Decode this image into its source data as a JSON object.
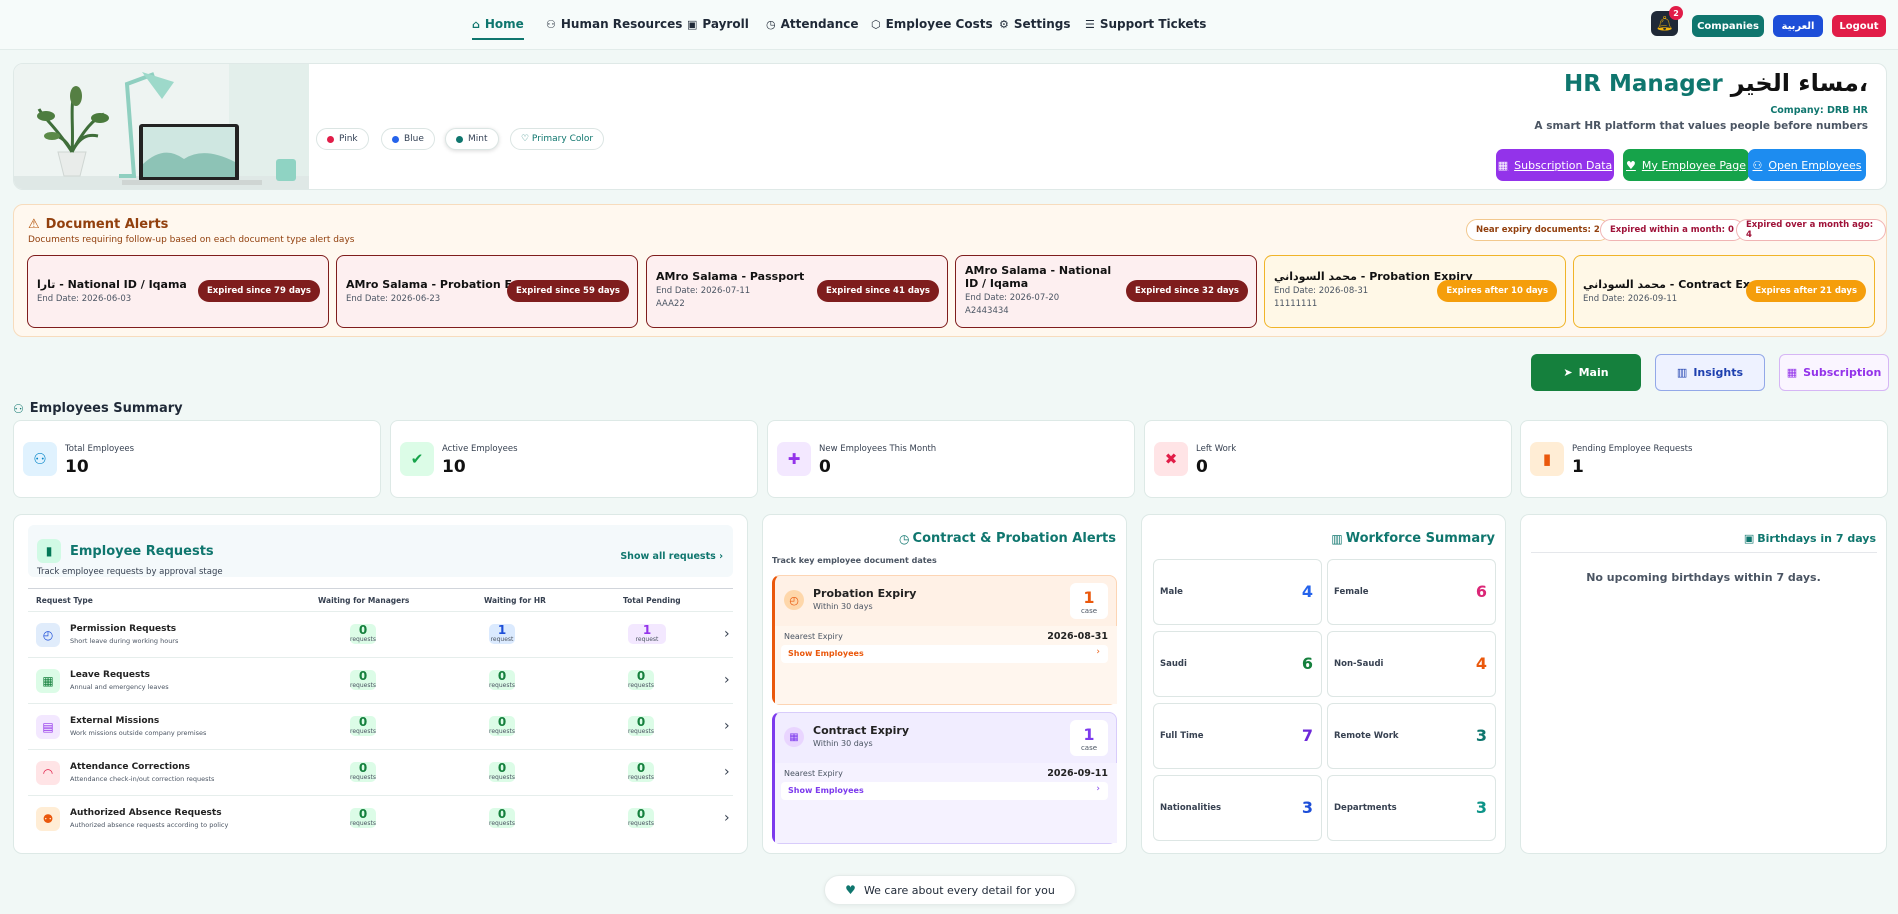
{
  "nav": {
    "items": [
      {
        "label": "Home",
        "icon": "home-icon"
      },
      {
        "label": "Human Resources",
        "icon": "people-icon"
      },
      {
        "label": "Payroll",
        "icon": "wallet-icon"
      },
      {
        "label": "Attendance",
        "icon": "clock-icon"
      },
      {
        "label": "Employee Costs",
        "icon": "cube-icon"
      },
      {
        "label": "Settings",
        "icon": "gear-icon"
      },
      {
        "label": "Support Tickets",
        "icon": "ticket-icon"
      }
    ],
    "notification_count": "2",
    "companies": "Companies",
    "arabic": "العربية",
    "logout": "Logout"
  },
  "hero": {
    "greeting": "مساء الخير،",
    "role": "HR Manager",
    "company": "Company: DRB HR",
    "tagline": "A smart HR platform that values people before numbers",
    "themes": [
      {
        "label": "Pink",
        "color": "#e11d48"
      },
      {
        "label": "Blue",
        "color": "#2563eb"
      },
      {
        "label": "Mint",
        "color": "#0f766e"
      }
    ],
    "primary_color": "♡ Primary Color",
    "buttons": {
      "subscription": "Subscription Data",
      "my_page": "My Employee Page",
      "open_employees": "Open Employees"
    }
  },
  "alerts": {
    "title": "Document Alerts",
    "subtitle": "Documents requiring follow-up based on each document type alert days",
    "summary": [
      "Near expiry documents: 2",
      "Expired within a month: 0",
      "Expired over a month ago: 4"
    ],
    "cards": [
      {
        "title": "تارا - National ID / Iqama",
        "end": "End Date: 2026-06-03",
        "extra": "",
        "badge": "Expired since 79 days",
        "status": "expired"
      },
      {
        "title": "AMro Salama - Probation Expiry",
        "end": "End Date: 2026-06-23",
        "extra": "",
        "badge": "Expired since 59 days",
        "status": "expired"
      },
      {
        "title": "AMro Salama - Passport",
        "end": "End Date: 2026-07-11",
        "extra": "AAA22",
        "badge": "Expired since 41 days",
        "status": "expired"
      },
      {
        "title": "AMro Salama - National ID / Iqama",
        "end": "End Date: 2026-07-20",
        "extra": "A2443434",
        "badge": "Expired since 32 days",
        "status": "expired"
      },
      {
        "title": "محمد السوداني - Probation Expiry",
        "end": "End Date: 2026-08-31",
        "extra": "11111111",
        "badge": "Expires after 10 days",
        "status": "soon"
      },
      {
        "title": "محمد السوداني - Contract Expiry",
        "end": "End Date: 2026-09-11",
        "extra": "",
        "badge": "Expires after 21 days",
        "status": "soon"
      }
    ]
  },
  "tabs": {
    "main": "Main",
    "insights": "Insights",
    "subscription": "Subscription"
  },
  "summary": {
    "title": "Employees Summary",
    "stats": [
      {
        "label": "Total Employees",
        "value": "10",
        "icon": "users-icon"
      },
      {
        "label": "Active Employees",
        "value": "10",
        "icon": "check-icon"
      },
      {
        "label": "New Employees This Month",
        "value": "0",
        "icon": "user-plus-icon"
      },
      {
        "label": "Left Work",
        "value": "0",
        "icon": "user-x-icon"
      },
      {
        "label": "Pending Employee Requests",
        "value": "1",
        "icon": "clipboard-icon"
      }
    ]
  },
  "requests": {
    "title": "Employee Requests",
    "subtitle": "Track employee requests by approval stage",
    "show_all": "Show all requests ›",
    "columns": [
      "Request Type",
      "Waiting for Managers",
      "Waiting for HR",
      "Total Pending"
    ],
    "rows": [
      {
        "name": "Permission Requests",
        "desc": "Short leave during working hours",
        "managers": "0",
        "hr": "1",
        "total": "1",
        "unit_m": "requests",
        "unit_h": "request",
        "unit_t": "request"
      },
      {
        "name": "Leave Requests",
        "desc": "Annual and emergency leaves",
        "managers": "0",
        "hr": "0",
        "total": "0",
        "unit_m": "requests",
        "unit_h": "requests",
        "unit_t": "requests"
      },
      {
        "name": "External Missions",
        "desc": "Work missions outside company premises",
        "managers": "0",
        "hr": "0",
        "total": "0",
        "unit_m": "requests",
        "unit_h": "requests",
        "unit_t": "requests"
      },
      {
        "name": "Attendance Corrections",
        "desc": "Attendance check-in/out correction requests",
        "managers": "0",
        "hr": "0",
        "total": "0",
        "unit_m": "requests",
        "unit_h": "requests",
        "unit_t": "requests"
      },
      {
        "name": "Authorized Absence Requests",
        "desc": "Authorized absence requests according to policy",
        "managers": "0",
        "hr": "0",
        "total": "0",
        "unit_m": "requests",
        "unit_h": "requests",
        "unit_t": "requests"
      }
    ]
  },
  "contract": {
    "title": "Contract & Probation Alerts",
    "subtitle": "Track key employee document dates",
    "cards": [
      {
        "title": "Probation Expiry",
        "within": "Within 30 days",
        "count": "1",
        "unit": "case",
        "nearest_label": "Nearest Expiry",
        "nearest": "2026-08-31",
        "link": "Show Employees"
      },
      {
        "title": "Contract Expiry",
        "within": "Within 30 days",
        "count": "1",
        "unit": "case",
        "nearest_label": "Nearest Expiry",
        "nearest": "2026-09-11",
        "link": "Show Employees"
      }
    ]
  },
  "workforce": {
    "title": "Workforce Summary",
    "items": [
      {
        "label": "Male",
        "value": "4",
        "color": "#2563eb"
      },
      {
        "label": "Female",
        "value": "6",
        "color": "#db2777"
      },
      {
        "label": "Saudi",
        "value": "6",
        "color": "#15803d"
      },
      {
        "label": "Non-Saudi",
        "value": "4",
        "color": "#ea580c"
      },
      {
        "label": "Full Time",
        "value": "7",
        "color": "#6d28d9"
      },
      {
        "label": "Remote Work",
        "value": "3",
        "color": "#0f766e"
      },
      {
        "label": "Nationalities",
        "value": "3",
        "color": "#1d4ed8"
      },
      {
        "label": "Departments",
        "value": "3",
        "color": "#0d9488"
      }
    ]
  },
  "birthdays": {
    "title": "Birthdays in 7 days",
    "empty": "No upcoming birthdays within 7 days."
  },
  "footer": {
    "text": "We care about every detail for you"
  }
}
